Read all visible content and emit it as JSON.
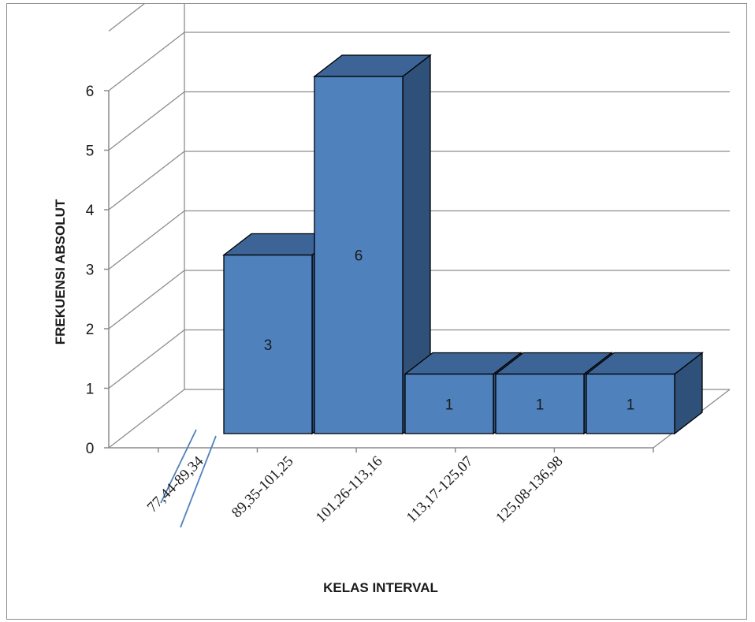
{
  "chart_data": {
    "type": "bar",
    "style": "3d-column",
    "categories": [
      "77,44-89,34",
      "89,35-101,25",
      "101,26-113,16",
      "113,17-125,07",
      "125,08-136,98"
    ],
    "values": [
      3,
      6,
      1,
      1,
      1
    ],
    "data_labels": [
      "3",
      "6",
      "1",
      "1",
      "1"
    ],
    "xlabel": "KELAS INTERVAL",
    "ylabel": "FREKUENSI ABSOLUT",
    "ylim": [
      0,
      6
    ],
    "yticks": [
      "0",
      "1",
      "2",
      "3",
      "4",
      "5",
      "6"
    ],
    "grid": true,
    "legend": "none",
    "axis_break": true
  },
  "colors": {
    "bar_front": "#4f81bd",
    "bar_top": "#3c6496",
    "bar_side": "#2f5079",
    "bar_outline": "#000000",
    "gridline": "#8c8c8c",
    "axis_break": "#4f81bd"
  }
}
